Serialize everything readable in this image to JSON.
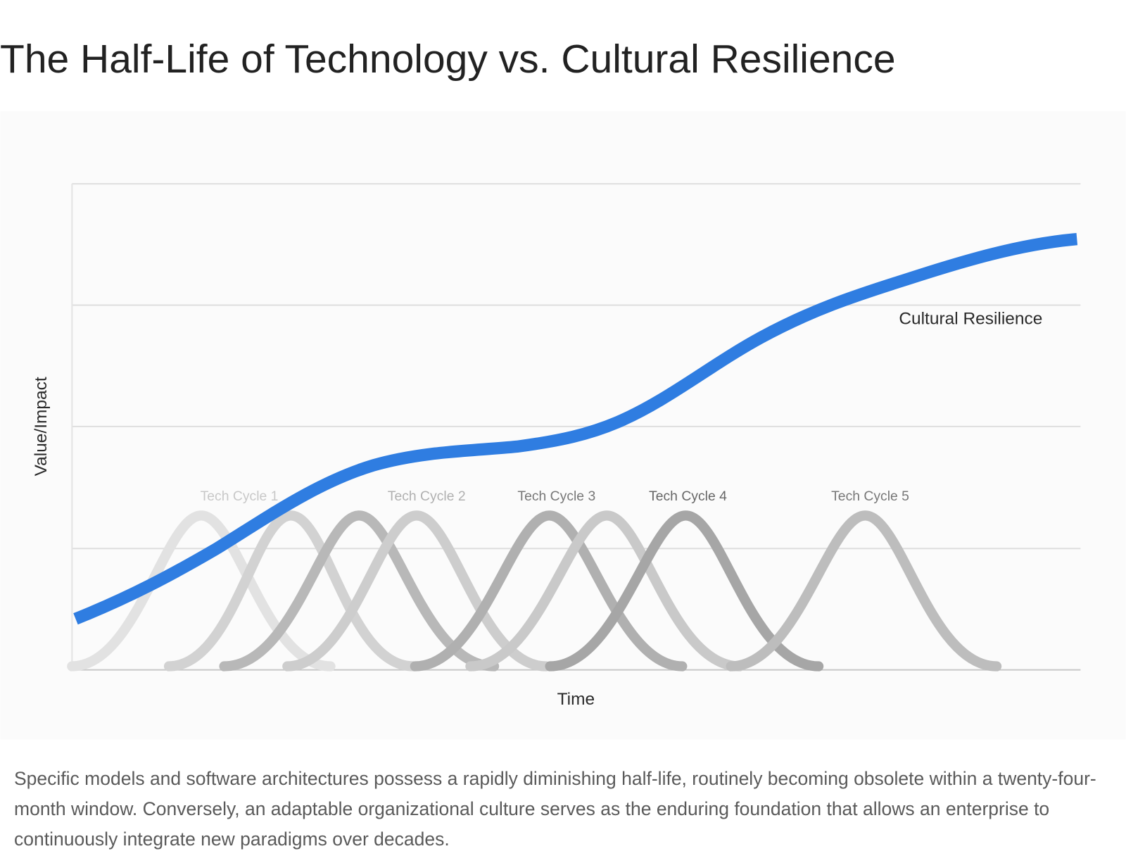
{
  "title": "The Half-Life of Technology vs. Cultural Resilience",
  "figure": {
    "y_axis_label": "Value/Impact",
    "x_axis_label": "Time",
    "curve_label": "Cultural Resilience",
    "cycle_labels": [
      "Tech Cycle 1",
      "Tech Cycle 2",
      "Tech Cycle 3",
      "Tech Cycle 4",
      "Tech Cycle 5"
    ]
  },
  "caption": "Specific models and software architectures possess a rapidly diminishing half-life, routinely becoming obsolete within a twenty-four-month window. Conversely, an adaptable organizational culture serves as the enduring foundation that allows an enterprise to continuously integrate new paradigms over decades."
}
